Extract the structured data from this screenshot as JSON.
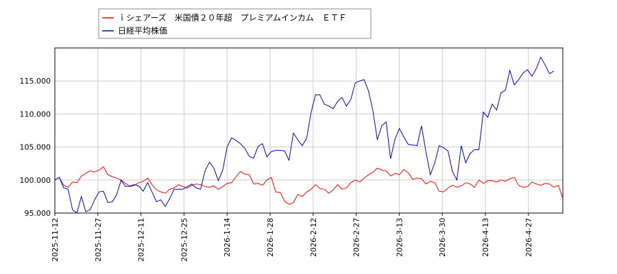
{
  "chart_data": {
    "type": "line",
    "title": "",
    "xlabel": "",
    "ylabel": "",
    "grid": true,
    "legend_position": "top-left",
    "x_ticks": [
      "2025-11-12",
      "2025-11-27",
      "2025-12-11",
      "2025-12-25",
      "2026-1-14",
      "2026-1-28",
      "2026-2-12",
      "2026-2-27",
      "2026-3-13",
      "2026-3-30",
      "2026-4-13",
      "2026-4-27"
    ],
    "y_ticks": [
      "95.000",
      "100.000",
      "105.000",
      "110.000",
      "115.000"
    ],
    "ylim": [
      95,
      120
    ],
    "series": [
      {
        "name": "ｉシェアーズ　米国債２０年超　プレミアムインカム　ＥＴＦ",
        "color": "#ff0000",
        "values": [
          100.0,
          100.4,
          99.2,
          98.9,
          99.7,
          99.6,
          100.6,
          101.0,
          101.4,
          101.2,
          101.5,
          102.0,
          100.8,
          100.5,
          100.3,
          100.0,
          99.5,
          99.0,
          99.2,
          99.6,
          99.8,
          100.3,
          99.3,
          98.5,
          98.2,
          98.0,
          98.6,
          98.8,
          99.3,
          99.0,
          98.8,
          99.2,
          99.4,
          99.3,
          99.0,
          98.9,
          99.1,
          98.6,
          99.0,
          99.5,
          99.6,
          100.5,
          101.3,
          100.9,
          100.8,
          99.4,
          99.5,
          99.2,
          100.0,
          100.4,
          98.2,
          98.1,
          96.8,
          96.3,
          96.6,
          97.8,
          97.5,
          98.2,
          98.6,
          99.3,
          98.7,
          98.6,
          98.0,
          98.5,
          99.3,
          98.6,
          98.8,
          99.6,
          100.0,
          99.7,
          100.3,
          100.8,
          101.2,
          101.8,
          101.5,
          101.4,
          100.6,
          101.0,
          100.8,
          101.6,
          101.1,
          100.1,
          100.3,
          100.2,
          99.4,
          99.8,
          99.6,
          98.3,
          98.2,
          98.8,
          99.2,
          98.9,
          99.1,
          99.6,
          99.4,
          98.9,
          100.0,
          99.5,
          99.9,
          99.9,
          99.7,
          100.0,
          99.8,
          100.2,
          100.4,
          99.2,
          98.9,
          99.0,
          99.7,
          99.4,
          99.2,
          99.5,
          99.4,
          98.9,
          99.2,
          97.2
        ]
      },
      {
        "name": "日経平均株価",
        "color": "#0000cc",
        "values": [
          100.0,
          100.4,
          98.8,
          98.6,
          95.5,
          95.0,
          97.5,
          95.2,
          95.5,
          97.0,
          98.2,
          98.3,
          96.6,
          96.7,
          97.8,
          100.0,
          99.0,
          99.1,
          99.3,
          99.1,
          98.3,
          99.6,
          98.2,
          96.7,
          97.0,
          96.0,
          97.2,
          98.6,
          98.6,
          98.6,
          99.0,
          99.4,
          98.8,
          98.6,
          101.4,
          102.7,
          101.8,
          99.9,
          101.5,
          105.0,
          106.4,
          106.0,
          105.5,
          104.8,
          103.6,
          103.3,
          105.1,
          105.5,
          103.5,
          104.3,
          104.5,
          104.5,
          104.4,
          103.0,
          107.1,
          106.1,
          105.2,
          106.3,
          110.2,
          112.9,
          112.9,
          111.5,
          111.2,
          110.8,
          111.9,
          112.5,
          111.2,
          112.2,
          114.7,
          115.0,
          115.2,
          113.5,
          110.5,
          106.1,
          108.2,
          108.8,
          103.2,
          106.2,
          107.8,
          106.5,
          105.4,
          105.3,
          105.2,
          108.2,
          104.3,
          100.8,
          102.6,
          105.2,
          104.9,
          104.4,
          101.3,
          100.0,
          105.2,
          102.6,
          104.0,
          104.6,
          104.6,
          110.3,
          109.5,
          111.5,
          110.6,
          113.2,
          113.6,
          116.6,
          114.4,
          115.2,
          116.2,
          116.7,
          115.7,
          116.9,
          118.6,
          117.4,
          116.1,
          116.5
        ]
      }
    ]
  }
}
